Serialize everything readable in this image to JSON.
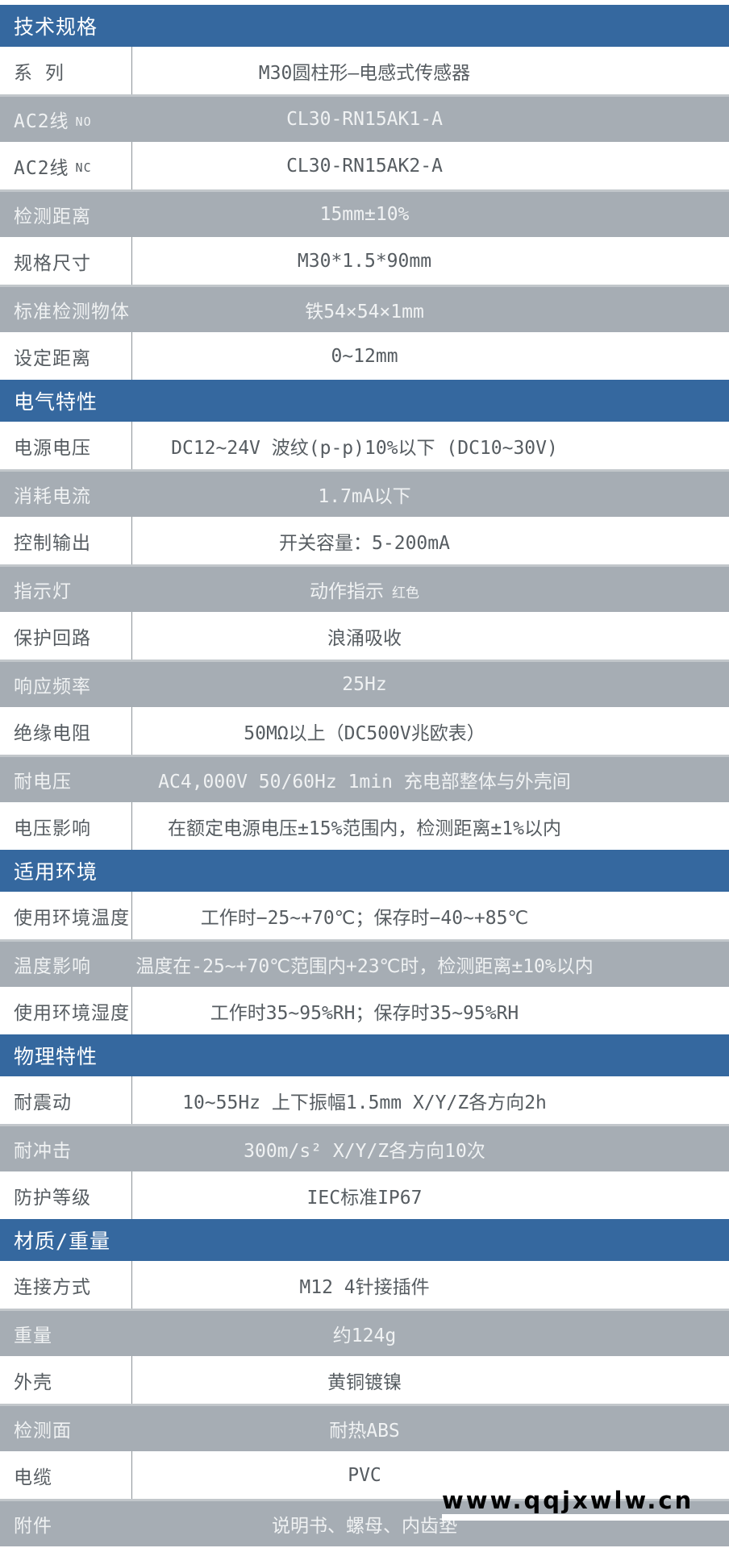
{
  "colors": {
    "accent_blue": "#35689F",
    "row_gray": "#A6ADB4"
  },
  "watermark": "www.qqjxwlw.cn",
  "table": {
    "sections": [
      {
        "header": "技术规格",
        "rows": [
          {
            "label": "系 列",
            "value": "M30圆柱形—电感式传感器",
            "shade": "white"
          },
          {
            "label": "AC2线",
            "label_suffix": "NO",
            "value": "CL30-RN15AK1-A",
            "shade": "gray"
          },
          {
            "label": "AC2线",
            "label_suffix": "NC",
            "value": "CL30-RN15AK2-A",
            "shade": "white"
          },
          {
            "label": "检测距离",
            "value": "15mm±10%",
            "shade": "gray"
          },
          {
            "label": "规格尺寸",
            "value": "M30*1.5*90mm",
            "shade": "white"
          },
          {
            "label": "标准检测物体",
            "value": "铁54×54×1mm",
            "shade": "gray"
          },
          {
            "label": "设定距离",
            "value": "0~12mm",
            "shade": "white"
          }
        ]
      },
      {
        "header": "电气特性",
        "rows": [
          {
            "label": "电源电压",
            "value": "DC12~24V 波纹(p-p)10%以下 (DC10~30V)",
            "shade": "white"
          },
          {
            "label": "消耗电流",
            "value": "1.7mA以下",
            "shade": "gray"
          },
          {
            "label": "控制输出",
            "value": "开关容量：5-200mA",
            "shade": "white"
          },
          {
            "label": "指示灯",
            "value": "动作指示",
            "value_suffix": "红色",
            "shade": "gray"
          },
          {
            "label": "保护回路",
            "value": "浪涌吸收",
            "shade": "white"
          },
          {
            "label": "响应频率",
            "value": "25Hz",
            "shade": "gray"
          },
          {
            "label": "绝缘电阻",
            "value": "50MΩ以上（DC500V兆欧表）",
            "shade": "white"
          },
          {
            "label": "耐电压",
            "value": "AC4,000V 50/60Hz 1min 充电部整体与外壳间",
            "shade": "gray"
          },
          {
            "label": "电压影响",
            "value": "在额定电源电压±15%范围内，检测距离±1%以内",
            "shade": "white"
          }
        ]
      },
      {
        "header": "适用环境",
        "rows": [
          {
            "label": "使用环境温度",
            "value": "工作时−25~+70℃；保存时−40~+85℃",
            "shade": "white"
          },
          {
            "label": "温度影响",
            "value": "温度在-25~+70℃范围内+23℃时，检测距离±10%以内",
            "shade": "gray"
          },
          {
            "label": "使用环境湿度",
            "value": "工作时35~95%RH；保存时35~95%RH",
            "shade": "white"
          }
        ]
      },
      {
        "header": "物理特性",
        "rows": [
          {
            "label": "耐震动",
            "value": "10~55Hz 上下振幅1.5mm X/Y/Z各方向2h",
            "shade": "white"
          },
          {
            "label": "耐冲击",
            "value": "300m/s² X/Y/Z各方向10次",
            "shade": "gray"
          },
          {
            "label": "防护等级",
            "value": "IEC标准IP67",
            "shade": "white"
          }
        ]
      },
      {
        "header": "材质/重量",
        "rows": [
          {
            "label": "连接方式",
            "value": "M12 4针接插件",
            "shade": "white"
          },
          {
            "label": "重量",
            "value": "约124g",
            "shade": "gray"
          },
          {
            "label": "外壳",
            "value": "黄铜镀镍",
            "shade": "white"
          },
          {
            "label": "检测面",
            "value": "耐热ABS",
            "shade": "gray"
          },
          {
            "label": "电缆",
            "value": "PVC",
            "shade": "white"
          },
          {
            "label": "附件",
            "value": "说明书、螺母、内齿垫",
            "shade": "gray"
          }
        ]
      }
    ]
  }
}
